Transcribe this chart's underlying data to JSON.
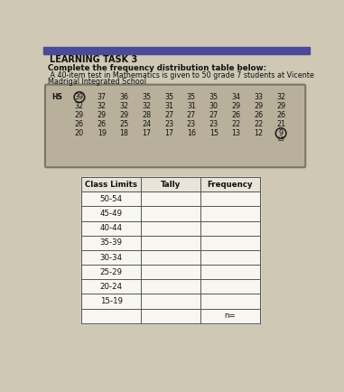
{
  "title": "LEARNING TASK 3",
  "instruction_line1": "Complete the frequency distribution table below:",
  "instruction_line2": " A 40-item test in Mathematics is given to 50 grade 7 students at Vicente",
  "instruction_line3": "Madrigal Integrated School",
  "hs_label": "HS",
  "hs_circled": "39",
  "row0": [
    "37",
    "36",
    "35",
    "35",
    "35",
    "35",
    "34",
    "33",
    "32"
  ],
  "row1": [
    "32",
    "32",
    "32",
    "32",
    "31",
    "31",
    "30",
    "29",
    "29",
    "29"
  ],
  "row2": [
    "29",
    "29",
    "29",
    "28",
    "27",
    "27",
    "27",
    "26",
    "26",
    "26"
  ],
  "row3": [
    "26",
    "26",
    "25",
    "24",
    "23",
    "23",
    "23",
    "22",
    "22",
    "21"
  ],
  "row4": [
    "20",
    "19",
    "18",
    "17",
    "17",
    "16",
    "15",
    "13",
    "12"
  ],
  "ls_label": "LS",
  "table_headers": [
    "Class Limits",
    "Tally",
    "Frequency"
  ],
  "class_limits": [
    "50-54",
    "45-49",
    "40-44",
    "35-39",
    "30-34",
    "25-29",
    "20-24",
    "15-19",
    ""
  ],
  "bg_color": "#cec8b4",
  "box_bg": "#b8b09a",
  "banner_color": "#5a5a5a",
  "table_white": "#f8f6f0"
}
